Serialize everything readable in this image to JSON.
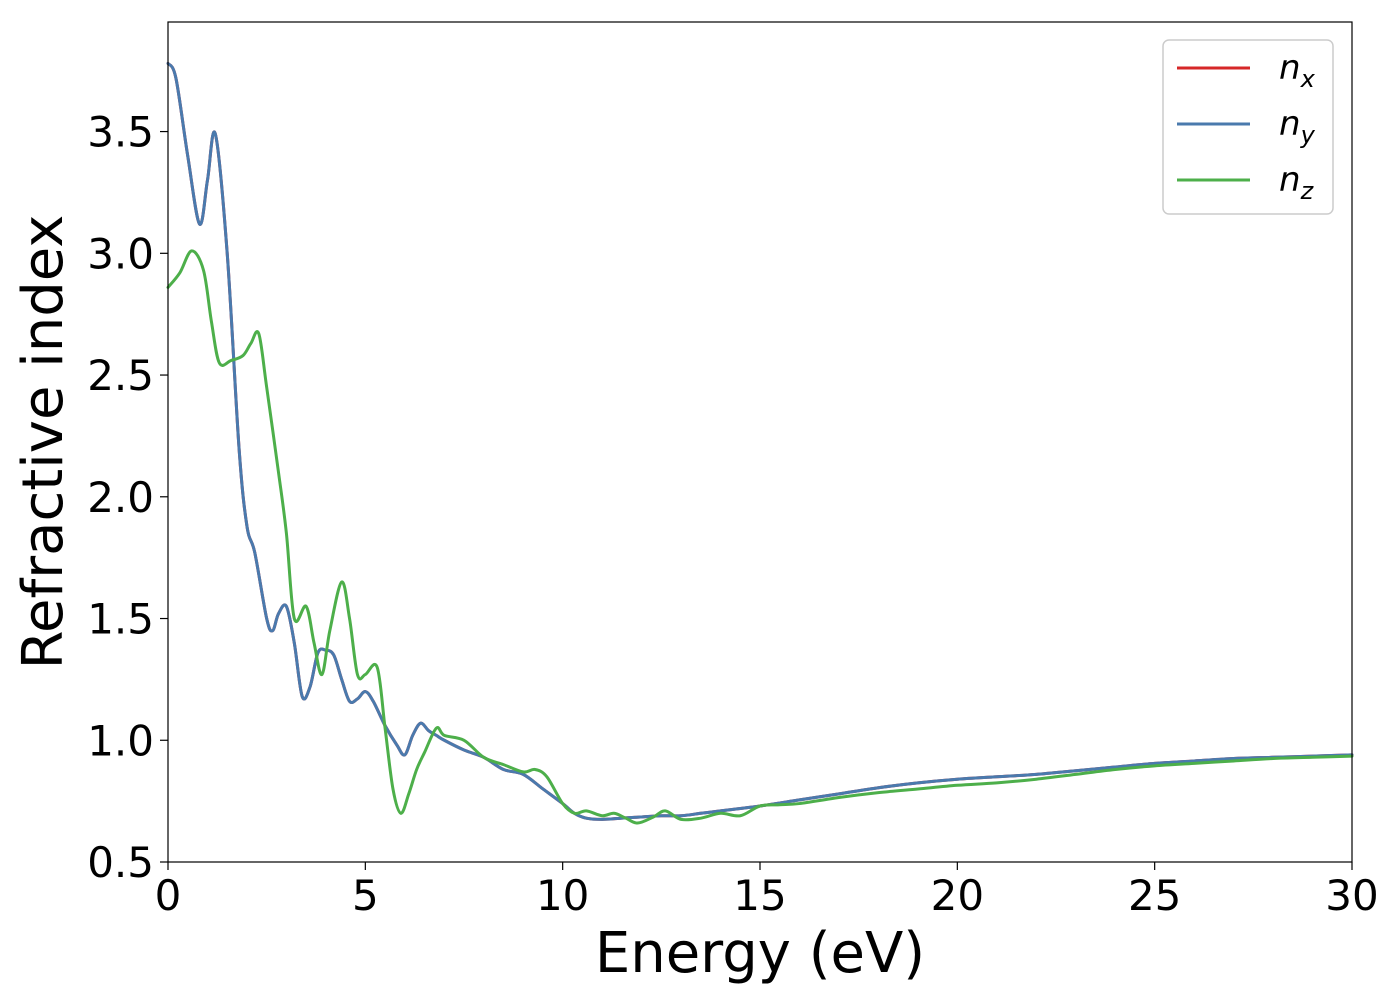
{
  "chart_data": {
    "type": "line",
    "xlabel": "Energy (eV)",
    "ylabel": "Refractive index",
    "xlim": [
      0,
      30
    ],
    "ylim": [
      0.5,
      3.95
    ],
    "xticks": [
      "0",
      "5",
      "10",
      "15",
      "20",
      "25",
      "30"
    ],
    "yticks": [
      "0.5",
      "1.0",
      "1.5",
      "2.0",
      "2.5",
      "3.0",
      "3.5"
    ],
    "grid": false,
    "legend_position": "top-right",
    "series": [
      {
        "name": "n",
        "subscript": "x",
        "color": "#d62728",
        "x": [
          0,
          0.2,
          0.5,
          0.8,
          1.0,
          1.2,
          1.5,
          1.8,
          2.0,
          2.2,
          2.5,
          2.65,
          2.8,
          3.0,
          3.2,
          3.4,
          3.6,
          3.8,
          4.0,
          4.2,
          4.4,
          4.6,
          4.8,
          5.0,
          5.2,
          5.5,
          5.8,
          6.0,
          6.2,
          6.4,
          6.6,
          6.8,
          7.0,
          7.5,
          8.0,
          8.5,
          9.0,
          9.5,
          10.0,
          10.3,
          10.6,
          11.0,
          11.5,
          12.0,
          12.5,
          13.0,
          13.5,
          14.0,
          15.0,
          16.0,
          17.0,
          18.0,
          19.0,
          20.0,
          21.0,
          22.0,
          23.0,
          24.0,
          25.0,
          26.0,
          27.0,
          28.0,
          29.0,
          30.0
        ],
        "y": [
          3.78,
          3.72,
          3.4,
          3.12,
          3.3,
          3.49,
          3.0,
          2.2,
          1.88,
          1.77,
          1.5,
          1.45,
          1.52,
          1.55,
          1.4,
          1.18,
          1.22,
          1.36,
          1.37,
          1.35,
          1.25,
          1.16,
          1.17,
          1.2,
          1.16,
          1.06,
          0.98,
          0.94,
          1.02,
          1.07,
          1.04,
          1.02,
          1.0,
          0.96,
          0.93,
          0.88,
          0.86,
          0.8,
          0.74,
          0.7,
          0.68,
          0.675,
          0.68,
          0.685,
          0.69,
          0.69,
          0.7,
          0.71,
          0.73,
          0.755,
          0.78,
          0.805,
          0.825,
          0.84,
          0.85,
          0.86,
          0.875,
          0.89,
          0.905,
          0.915,
          0.925,
          0.93,
          0.935,
          0.94
        ]
      },
      {
        "name": "n",
        "subscript": "y",
        "color": "#4a7aad",
        "x": [
          0,
          0.2,
          0.5,
          0.8,
          1.0,
          1.2,
          1.5,
          1.8,
          2.0,
          2.2,
          2.5,
          2.65,
          2.8,
          3.0,
          3.2,
          3.4,
          3.6,
          3.8,
          4.0,
          4.2,
          4.4,
          4.6,
          4.8,
          5.0,
          5.2,
          5.5,
          5.8,
          6.0,
          6.2,
          6.4,
          6.6,
          6.8,
          7.0,
          7.5,
          8.0,
          8.5,
          9.0,
          9.5,
          10.0,
          10.3,
          10.6,
          11.0,
          11.5,
          12.0,
          12.5,
          13.0,
          13.5,
          14.0,
          15.0,
          16.0,
          17.0,
          18.0,
          19.0,
          20.0,
          21.0,
          22.0,
          23.0,
          24.0,
          25.0,
          26.0,
          27.0,
          28.0,
          29.0,
          30.0
        ],
        "y": [
          3.78,
          3.72,
          3.4,
          3.12,
          3.3,
          3.49,
          3.0,
          2.2,
          1.88,
          1.77,
          1.5,
          1.45,
          1.52,
          1.55,
          1.4,
          1.18,
          1.22,
          1.36,
          1.37,
          1.35,
          1.25,
          1.16,
          1.17,
          1.2,
          1.16,
          1.06,
          0.98,
          0.94,
          1.02,
          1.07,
          1.04,
          1.02,
          1.0,
          0.96,
          0.93,
          0.88,
          0.86,
          0.8,
          0.74,
          0.7,
          0.68,
          0.675,
          0.68,
          0.685,
          0.69,
          0.69,
          0.7,
          0.71,
          0.73,
          0.755,
          0.78,
          0.805,
          0.825,
          0.84,
          0.85,
          0.86,
          0.875,
          0.89,
          0.905,
          0.915,
          0.925,
          0.93,
          0.935,
          0.94
        ]
      },
      {
        "name": "n",
        "subscript": "z",
        "color": "#4daf4a",
        "x": [
          0,
          0.3,
          0.6,
          0.9,
          1.1,
          1.3,
          1.6,
          1.9,
          2.1,
          2.3,
          2.5,
          2.8,
          3.0,
          3.2,
          3.5,
          3.7,
          3.9,
          4.1,
          4.4,
          4.6,
          4.8,
          5.0,
          5.3,
          5.5,
          5.7,
          5.9,
          6.1,
          6.3,
          6.5,
          6.8,
          7.0,
          7.5,
          8.0,
          8.5,
          9.0,
          9.3,
          9.6,
          10.0,
          10.3,
          10.6,
          11.0,
          11.3,
          11.6,
          11.9,
          12.3,
          12.6,
          13.0,
          13.5,
          14.0,
          14.5,
          15.0,
          15.5,
          16.0,
          17.0,
          18.0,
          19.0,
          20.0,
          21.0,
          22.0,
          23.0,
          24.0,
          25.0,
          26.0,
          27.0,
          28.0,
          29.0,
          30.0
        ],
        "y": [
          2.86,
          2.92,
          3.01,
          2.93,
          2.72,
          2.55,
          2.56,
          2.58,
          2.63,
          2.67,
          2.45,
          2.1,
          1.85,
          1.5,
          1.55,
          1.4,
          1.27,
          1.45,
          1.65,
          1.5,
          1.27,
          1.27,
          1.3,
          1.05,
          0.8,
          0.7,
          0.78,
          0.88,
          0.95,
          1.05,
          1.02,
          1.0,
          0.93,
          0.9,
          0.87,
          0.88,
          0.85,
          0.74,
          0.7,
          0.71,
          0.69,
          0.7,
          0.68,
          0.66,
          0.685,
          0.71,
          0.675,
          0.68,
          0.7,
          0.69,
          0.73,
          0.735,
          0.74,
          0.765,
          0.785,
          0.8,
          0.815,
          0.825,
          0.84,
          0.86,
          0.88,
          0.895,
          0.905,
          0.915,
          0.925,
          0.93,
          0.935
        ]
      }
    ]
  }
}
